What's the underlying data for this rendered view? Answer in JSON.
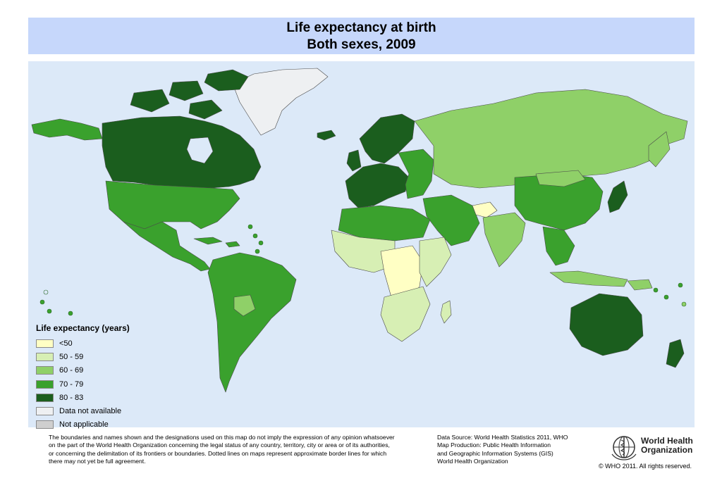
{
  "title": {
    "line1": "Life expectancy at birth",
    "line2": "Both sexes, 2009"
  },
  "legend": {
    "title": "Life expectancy (years)",
    "items": [
      {
        "label": "<50",
        "color": "#ffffc4"
      },
      {
        "label": "50 - 59",
        "color": "#d7efb4"
      },
      {
        "label": "60 - 69",
        "color": "#8fd068"
      },
      {
        "label": "70 - 79",
        "color": "#3aa12d"
      },
      {
        "label": "80 - 83",
        "color": "#1b5e1e"
      },
      {
        "label": "Data not available",
        "color": "#eef0f2"
      },
      {
        "label": "Not applicable",
        "color": "#cfcfcf"
      }
    ]
  },
  "footer": {
    "disclaimer_lines": [
      "The boundaries and names shown and the designations used on this map do not imply the expression of any opinion whatsoever",
      "on the part of the World Health Organization concerning the legal status of any country, territory, city or area or of its authorities,",
      "or concerning the delimitation of its frontiers or boundaries.  Dotted lines on maps represent approximate border lines for which",
      "there may not yet be full agreement."
    ],
    "source_lines": [
      "Data Source: World  Health Statistics 2011, WHO",
      "Map Production: Public Health Information",
      "and Geographic Information Systems (GIS)",
      "World Health Organization"
    ],
    "org_line1": "World Health",
    "org_line2": "Organization",
    "copyright": "© WHO 2011. All rights reserved."
  },
  "colors": {
    "ocean": "#dce9f8",
    "title_bg": "#c6d7fb"
  }
}
